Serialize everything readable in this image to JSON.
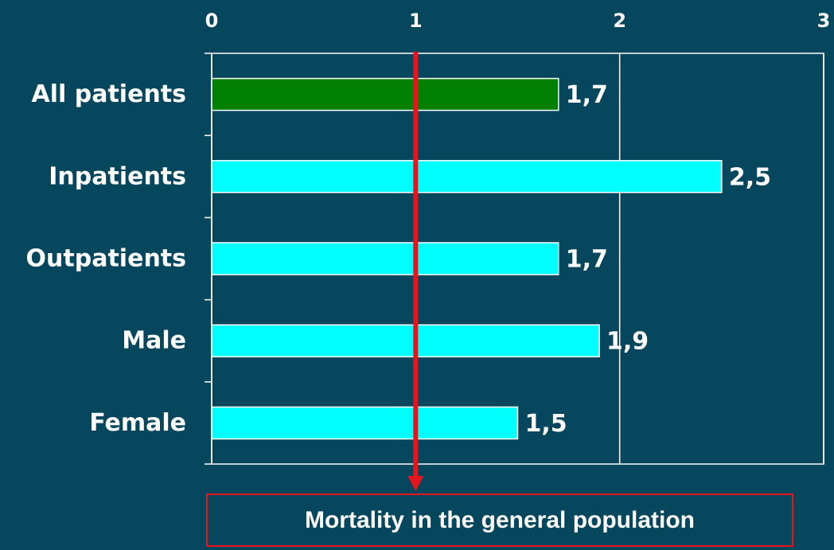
{
  "chart_data": {
    "type": "bar",
    "orientation": "horizontal",
    "categories": [
      "All patients",
      "Inpatients",
      "Outpatients",
      "Male",
      "Female"
    ],
    "values": [
      1.7,
      2.5,
      1.7,
      1.9,
      1.5
    ],
    "value_labels": [
      "1,7",
      "2,5",
      "1,7",
      "1,9",
      "1,5"
    ],
    "colors": [
      "#008000",
      "#00ffff",
      "#00ffff",
      "#00ffff",
      "#00ffff"
    ],
    "xlim": [
      0,
      3
    ],
    "xticks": [
      0,
      1,
      2,
      3
    ],
    "grid": true,
    "reference_line": {
      "value": 1,
      "color": "#e8141b",
      "label": "Mortality in the general population"
    }
  }
}
